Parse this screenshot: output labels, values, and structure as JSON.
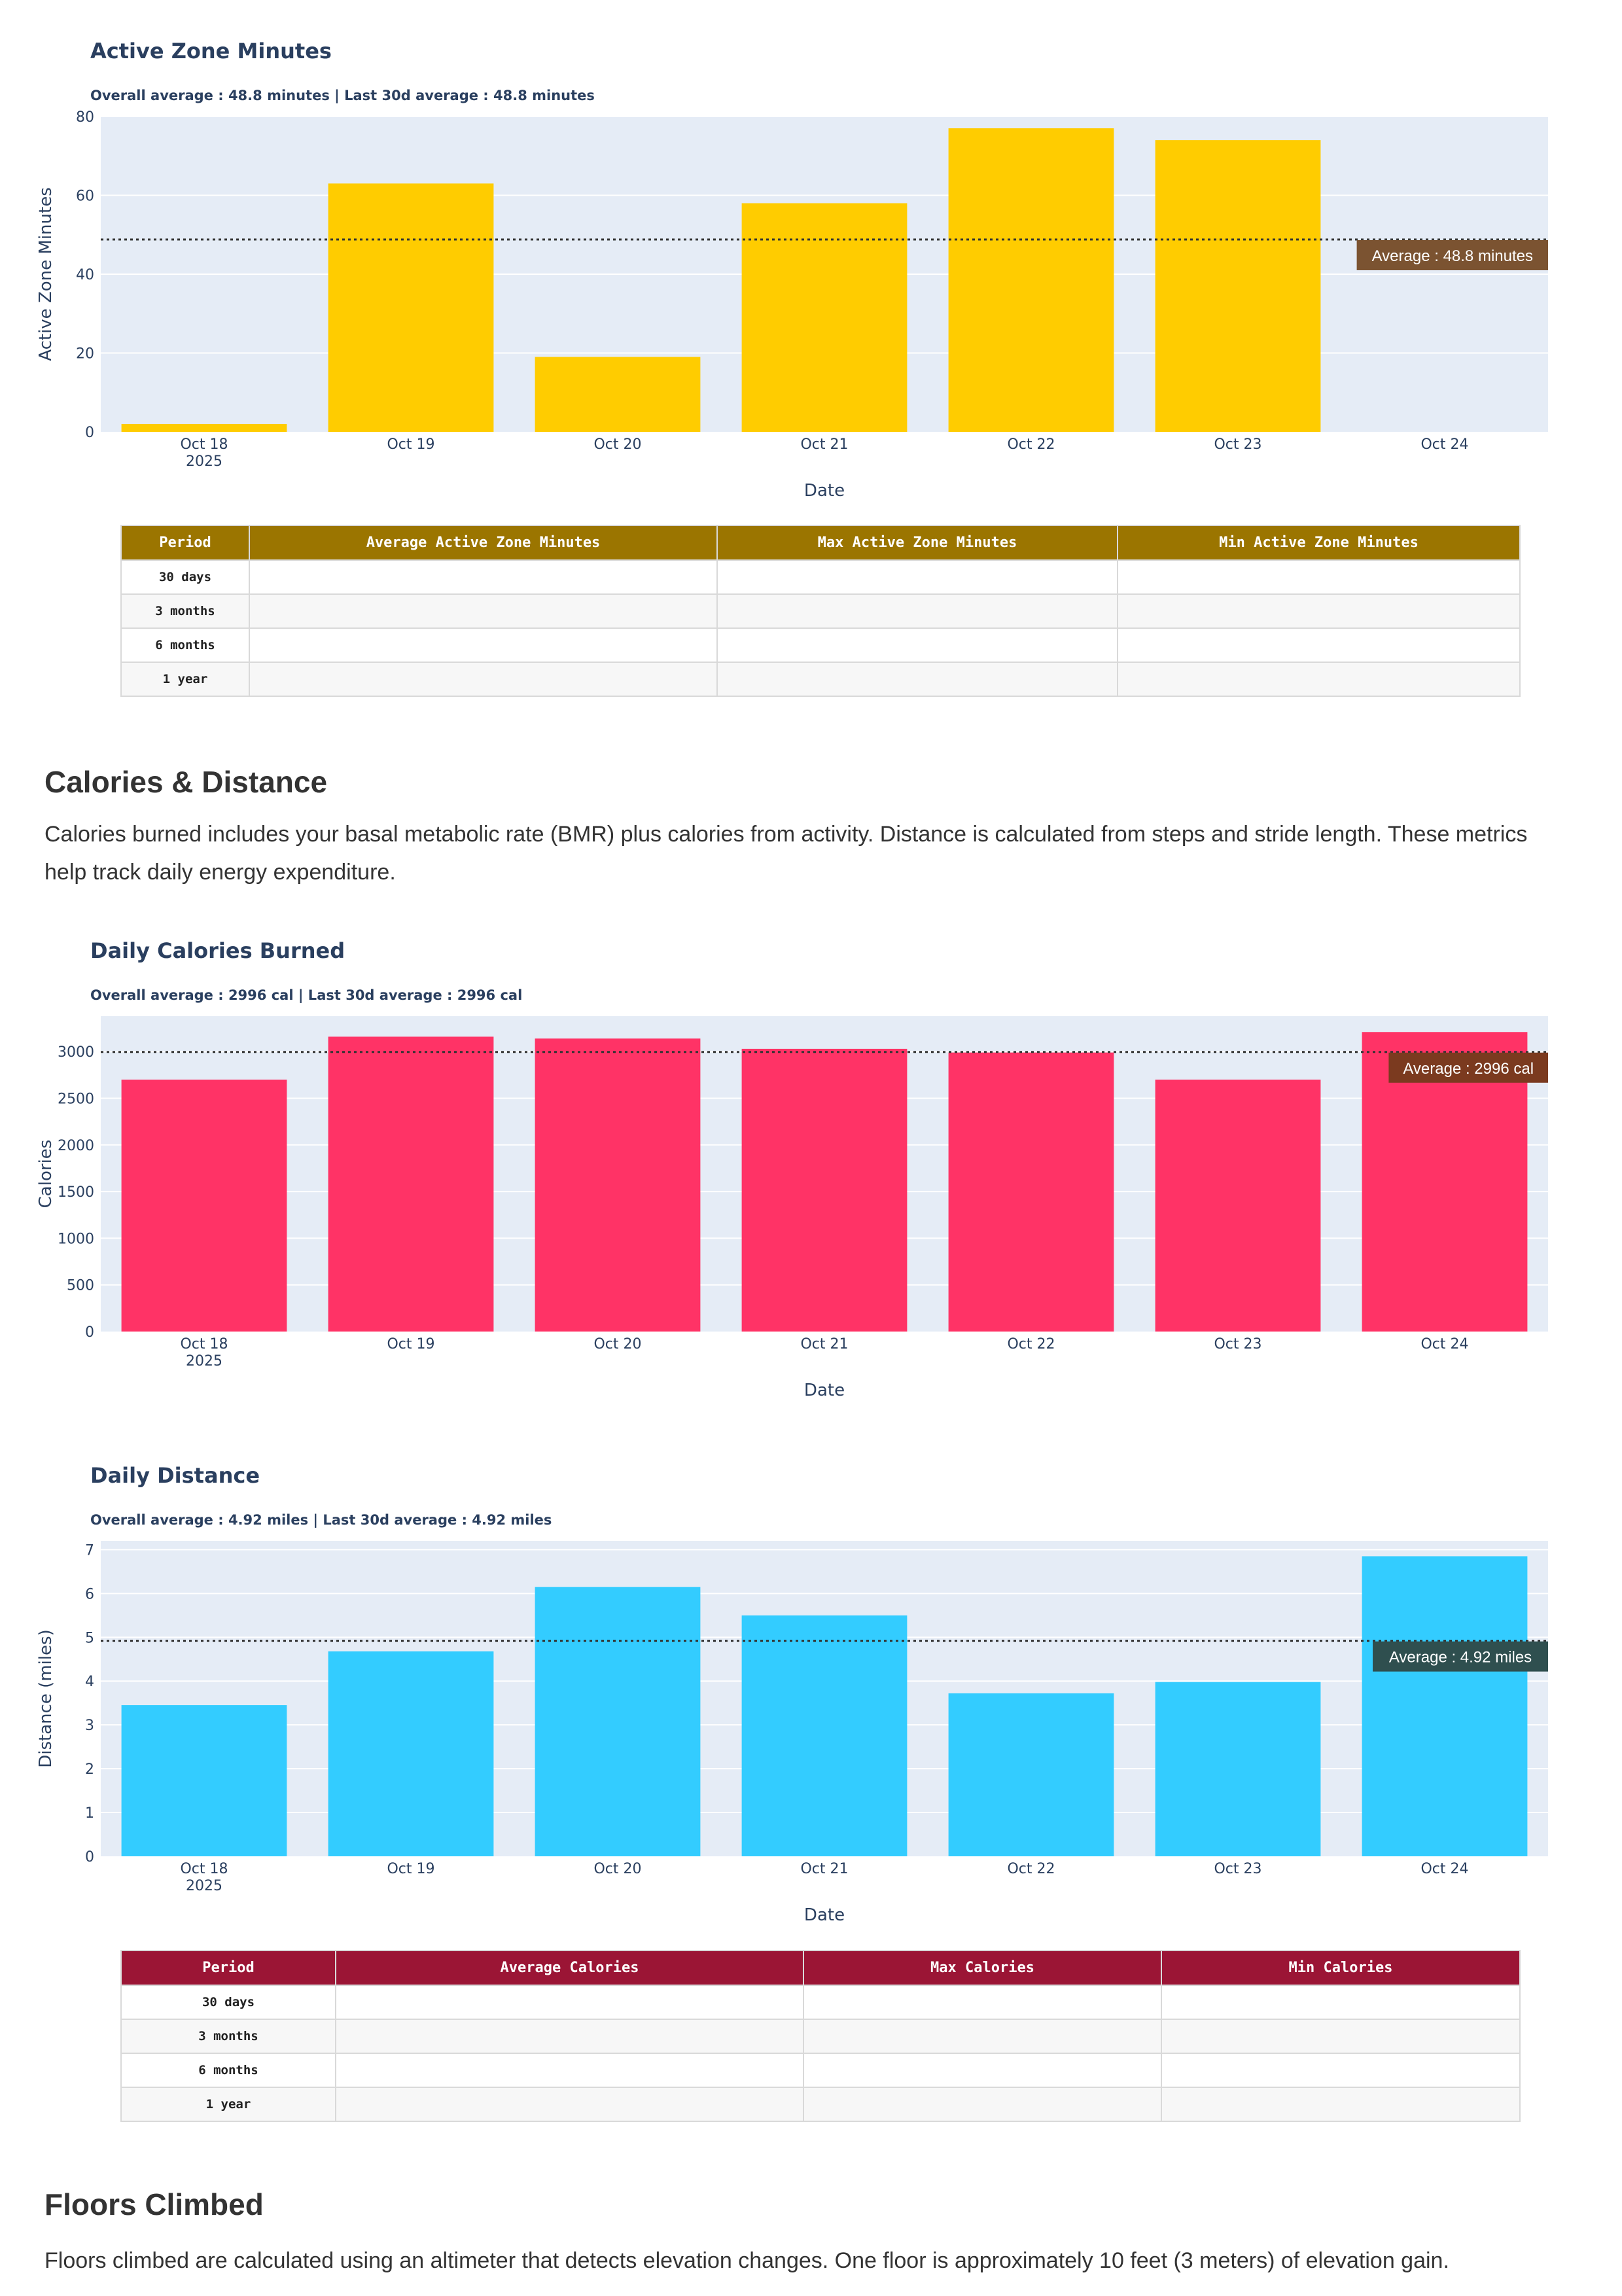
{
  "chart_data": [
    {
      "type": "bar",
      "title": "Active Zone Minutes",
      "subtitle": "Overall average : 48.8 minutes | Last 30d average : 48.8 minutes",
      "xlabel": "Date",
      "ylabel": "Active Zone Minutes",
      "categories": [
        "Oct 18",
        "Oct 19",
        "Oct 20",
        "Oct 21",
        "Oct 22",
        "Oct 23",
        "Oct 24"
      ],
      "year_label": "2025",
      "values": [
        2,
        63,
        19,
        58,
        77,
        74,
        0
      ],
      "ylim": [
        0,
        80
      ],
      "yticks": [
        0,
        20,
        40,
        60,
        80
      ],
      "average": 48.8,
      "average_label": "Average : 48.8 minutes",
      "bar_color": "#ffcc00",
      "avg_box_color": "#7b5331",
      "grid": true
    },
    {
      "type": "bar",
      "title": "Daily Calories Burned",
      "subtitle": "Overall average : 2996 cal | Last 30d average : 2996 cal",
      "xlabel": "Date",
      "ylabel": "Calories",
      "categories": [
        "Oct 18",
        "Oct 19",
        "Oct 20",
        "Oct 21",
        "Oct 22",
        "Oct 23",
        "Oct 24"
      ],
      "year_label": "2025",
      "values": [
        2700,
        3160,
        3140,
        3030,
        2990,
        2700,
        3210
      ],
      "ylim": [
        0,
        3380
      ],
      "yticks": [
        0,
        500,
        1000,
        1500,
        2000,
        2500,
        3000
      ],
      "average": 2996,
      "average_label": "Average : 2996 cal",
      "bar_color": "#ff3366",
      "avg_box_color": "#7b3a1f",
      "grid": true
    },
    {
      "type": "bar",
      "title": "Daily Distance",
      "subtitle": "Overall average : 4.92 miles | Last 30d average : 4.92 miles",
      "xlabel": "Date",
      "ylabel": "Distance (miles)",
      "categories": [
        "Oct 18",
        "Oct 19",
        "Oct 20",
        "Oct 21",
        "Oct 22",
        "Oct 23",
        "Oct 24"
      ],
      "year_label": "2025",
      "values": [
        3.45,
        4.68,
        6.15,
        5.5,
        3.72,
        3.98,
        6.85
      ],
      "ylim": [
        0,
        7.2
      ],
      "yticks": [
        0,
        1,
        2,
        3,
        4,
        5,
        6,
        7
      ],
      "average": 4.92,
      "average_label": "Average : 4.92 miles",
      "bar_color": "#33ccff",
      "avg_box_color": "#2f4f4f",
      "grid": true
    }
  ],
  "tables": {
    "azm": {
      "headers": [
        "Period",
        "Average Active Zone Minutes",
        "Max Active Zone Minutes",
        "Min Active Zone Minutes"
      ],
      "rows": [
        "30 days",
        "3 months",
        "6 months",
        "1 year"
      ]
    },
    "calories": {
      "headers": [
        "Period",
        "Average Calories",
        "Max Calories",
        "Min Calories"
      ],
      "rows": [
        "30 days",
        "3 months",
        "6 months",
        "1 year"
      ]
    }
  },
  "sections": {
    "calories": {
      "heading": "Calories & Distance",
      "text": "Calories burned includes your basal metabolic rate (BMR) plus calories from activity. Distance is calculated from steps and stride length. These metrics help track daily energy expenditure."
    },
    "floors": {
      "heading": "Floors Climbed",
      "text": "Floors climbed are calculated using an altimeter that detects elevation changes. One floor is approximately 10 feet (3 meters) of elevation gain."
    }
  }
}
